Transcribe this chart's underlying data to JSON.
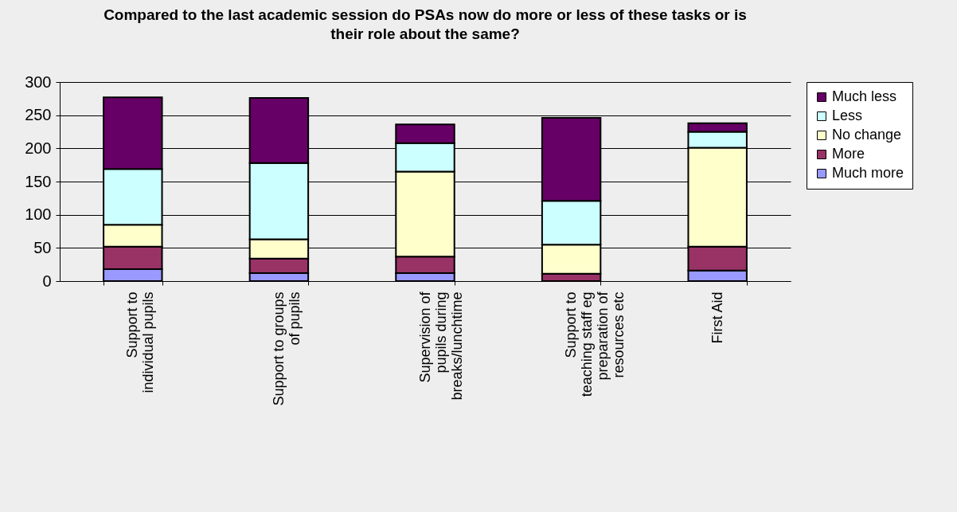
{
  "chart_data": {
    "type": "bar",
    "title": "Compared to the last academic session do PSAs now do more or less of these tasks or is their role about the same?",
    "categories": [
      "Support to individual pupils",
      "Support to groups of pupils",
      "Supervision of pupils during breaks/lunchtime",
      "Support to teaching staff eg preparation of resources etc",
      "First Aid"
    ],
    "stacked": true,
    "series": [
      {
        "name": "Much more",
        "color": "#9999ff",
        "values": [
          18,
          12,
          12,
          0,
          16
        ]
      },
      {
        "name": "More",
        "color": "#993366",
        "values": [
          34,
          22,
          25,
          11,
          36
        ]
      },
      {
        "name": "No change",
        "color": "#ffffcc",
        "values": [
          33,
          29,
          128,
          44,
          149
        ]
      },
      {
        "name": "Less",
        "color": "#ccffff",
        "values": [
          84,
          115,
          43,
          66,
          24
        ]
      },
      {
        "name": "Much less",
        "color": "#660066",
        "values": [
          108,
          98,
          28,
          125,
          13
        ]
      }
    ],
    "ylim": [
      0,
      300
    ],
    "yticks": [
      0,
      50,
      100,
      150,
      200,
      250,
      300
    ],
    "grid": "y",
    "legend": "right"
  }
}
